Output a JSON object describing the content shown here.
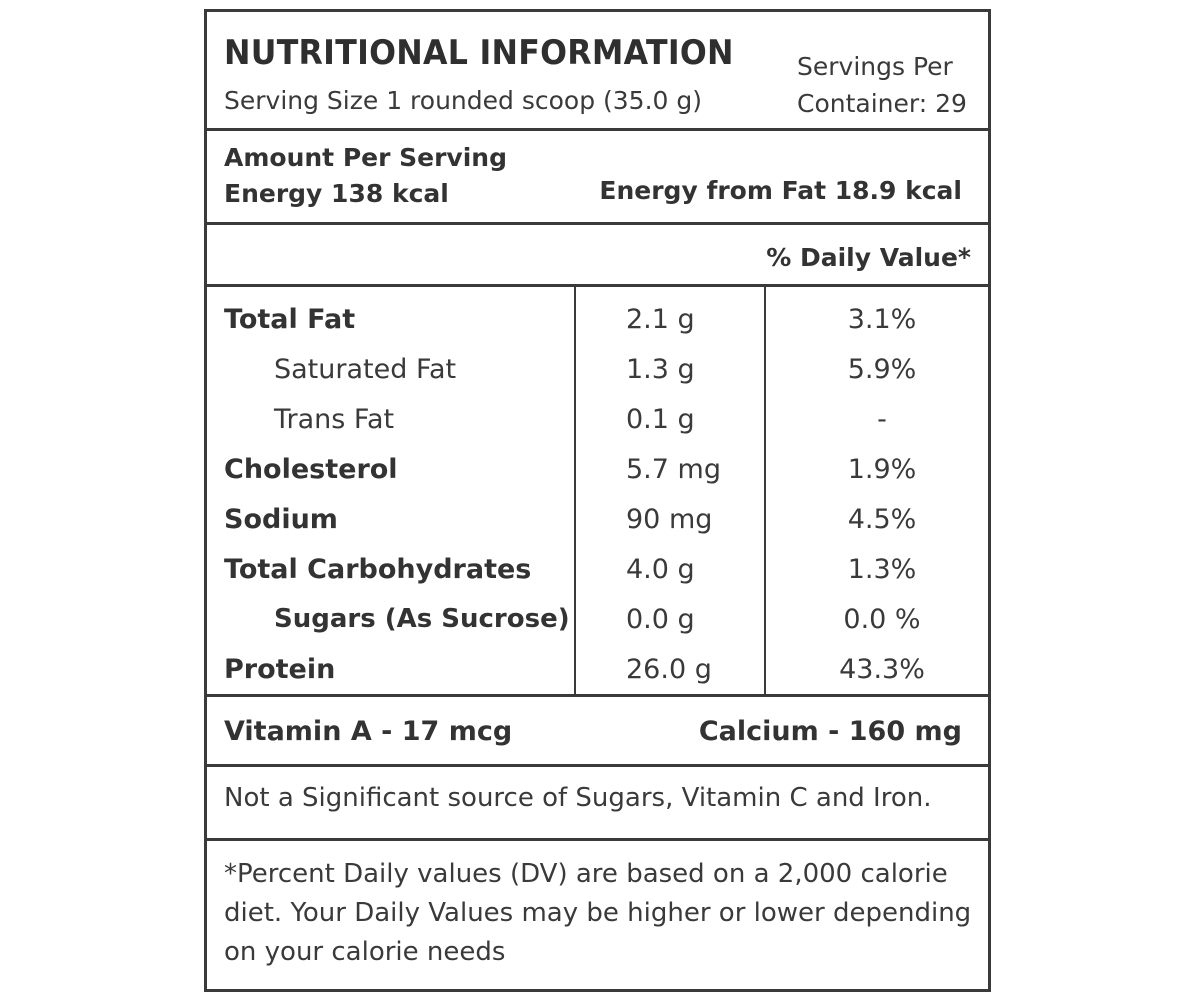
{
  "header": {
    "title": "NUTRITIONAL INFORMATION",
    "serving_size": "Serving Size 1 rounded scoop (35.0 g)",
    "servings_per_line1": "Servings Per",
    "servings_per_line2": "Container: 29"
  },
  "energy": {
    "amount_per_serving": "Amount Per Serving",
    "energy": "Energy 138 kcal",
    "energy_from_fat": "Energy from Fat 18.9 kcal"
  },
  "daily_value_header": "% Daily Value*",
  "nutrients": [
    {
      "name": "Total Fat",
      "amount": "2.1 g",
      "dv": "3.1%"
    },
    {
      "name": "Saturated Fat",
      "amount": "1.3 g",
      "dv": "5.9%"
    },
    {
      "name": "Trans Fat",
      "amount": "0.1 g",
      "dv": "-"
    },
    {
      "name": "Cholesterol",
      "amount": "5.7 mg",
      "dv": "1.9%"
    },
    {
      "name": "Sodium",
      "amount": "90 mg",
      "dv": "4.5%"
    },
    {
      "name": "Total Carbohydrates",
      "amount": "4.0 g",
      "dv": "1.3%"
    },
    {
      "name": "Sugars (As Sucrose)",
      "amount": "0.0 g",
      "dv": "0.0 %"
    },
    {
      "name": "Protein",
      "amount": "26.0 g",
      "dv": "43.3%"
    }
  ],
  "vitamins": {
    "vitamin_a": "Vitamin A - 17 mcg",
    "calcium": "Calcium - 160 mg"
  },
  "note": "Not a Significant source of Sugars, Vitamin C and Iron.",
  "footnote": "*Percent Daily values (DV) are based on a 2,000 calorie diet. Your Daily Values may be higher or lower depending on your calorie needs"
}
